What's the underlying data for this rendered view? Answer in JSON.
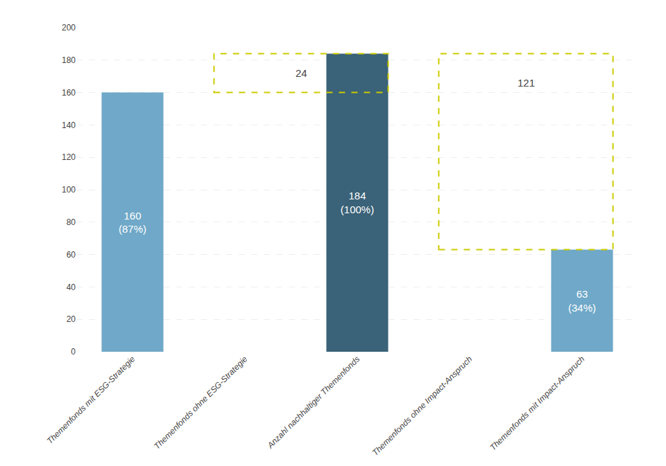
{
  "chart_data": {
    "type": "bar",
    "categories": [
      "Themenfonds mit ESG-Strategie",
      "Themenfonds ohne ESG-Strategie",
      "Anzahl nachhaltiger Themenfonds",
      "Themenfonds ohne Impact-Anspruch",
      "Themenfonds mit Impact-Anspruch"
    ],
    "values": [
      160,
      null,
      184,
      null,
      63
    ],
    "value_labels": [
      "160\n(87%)",
      null,
      "184\n(100%)",
      null,
      "63\n(34%)"
    ],
    "data_labels": true,
    "colors": [
      "#6fa8c8",
      null,
      "#3a6278",
      null,
      "#6fa8c8"
    ],
    "annotations": [
      {
        "text": "24",
        "low": 160,
        "high": 184,
        "span": [
          "Themenfonds ohne ESG-Strategie",
          "Anzahl nachhaltiger Themenfonds"
        ],
        "color": "#cccc00",
        "line_style": "dashed"
      },
      {
        "text": "121",
        "low": 63,
        "high": 184,
        "span": [
          "Themenfonds ohne Impact-Anspruch",
          "Themenfonds mit Impact-Anspruch"
        ],
        "color": "#cccc00",
        "line_style": "dashed"
      }
    ],
    "ylim": [
      0,
      200
    ],
    "yticks": [
      0,
      20,
      40,
      60,
      80,
      100,
      120,
      140,
      160,
      180,
      200
    ],
    "grid": true
  }
}
